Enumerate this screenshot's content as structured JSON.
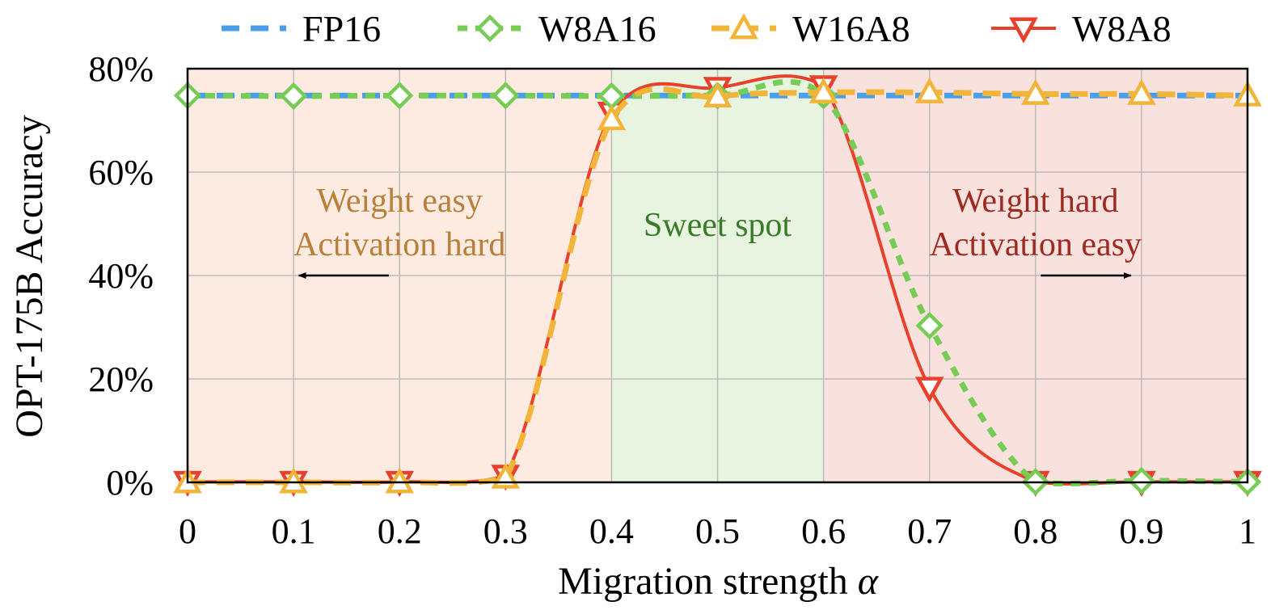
{
  "chart_data": {
    "type": "line",
    "xlabel": "Migration strength",
    "xlabel_symbol": "α",
    "ylabel": "OPT-175B Accuracy",
    "x": [
      0,
      0.1,
      0.2,
      0.3,
      0.4,
      0.5,
      0.6,
      0.7,
      0.8,
      0.9,
      1
    ],
    "xticks": [
      "0",
      "0.1",
      "0.2",
      "0.3",
      "0.4",
      "0.5",
      "0.6",
      "0.7",
      "0.8",
      "0.9",
      "1"
    ],
    "yticks": [
      "0%",
      "20%",
      "40%",
      "60%",
      "80%"
    ],
    "xlim": [
      0,
      1
    ],
    "ylim": [
      0,
      80
    ],
    "grid": true,
    "legend_position": "top",
    "series": [
      {
        "name": "FP16",
        "color": "#4A9FE8",
        "marker": "none",
        "dash": "dashed",
        "values": [
          74.8,
          74.8,
          74.8,
          74.8,
          74.8,
          74.8,
          74.8,
          74.8,
          74.8,
          74.8,
          74.8
        ]
      },
      {
        "name": "W8A16",
        "color": "#77CC55",
        "marker": "diamond",
        "dash": "dotted",
        "values": [
          74.8,
          74.7,
          74.8,
          74.8,
          74.7,
          74.8,
          74.8,
          30.3,
          0.1,
          0.3,
          0.1
        ]
      },
      {
        "name": "W16A8",
        "color": "#F2B53A",
        "marker": "triangle-up",
        "dash": "dashed",
        "values": [
          0,
          0,
          0,
          0.9,
          70.2,
          74.6,
          75.4,
          75.4,
          75.1,
          75.1,
          74.8
        ]
      },
      {
        "name": "W8A8",
        "color": "#E8402A",
        "marker": "triangle-down",
        "dash": "solid",
        "values": [
          0.1,
          0.1,
          0.1,
          1.3,
          71.5,
          76.3,
          76.6,
          18.3,
          0.1,
          0.1,
          0.1
        ]
      }
    ],
    "regions": [
      {
        "name": "weight-easy",
        "x_range": [
          0,
          0.4
        ],
        "color": "#FDEBE1",
        "label_line1": "Weight easy",
        "label_line2": "Activation hard",
        "text_color": "#B8803A",
        "arrow": "left"
      },
      {
        "name": "sweet-spot",
        "x_range": [
          0.4,
          0.6
        ],
        "color": "#E6F4E0",
        "label_line1": "Sweet spot",
        "label_line2": "",
        "text_color": "#3A7A2A",
        "arrow": "none"
      },
      {
        "name": "weight-hard",
        "x_range": [
          0.6,
          1
        ],
        "color": "#F9E2DE",
        "label_line1": "Weight hard",
        "label_line2": "Activation easy",
        "text_color": "#9E2A22",
        "arrow": "right"
      }
    ]
  }
}
